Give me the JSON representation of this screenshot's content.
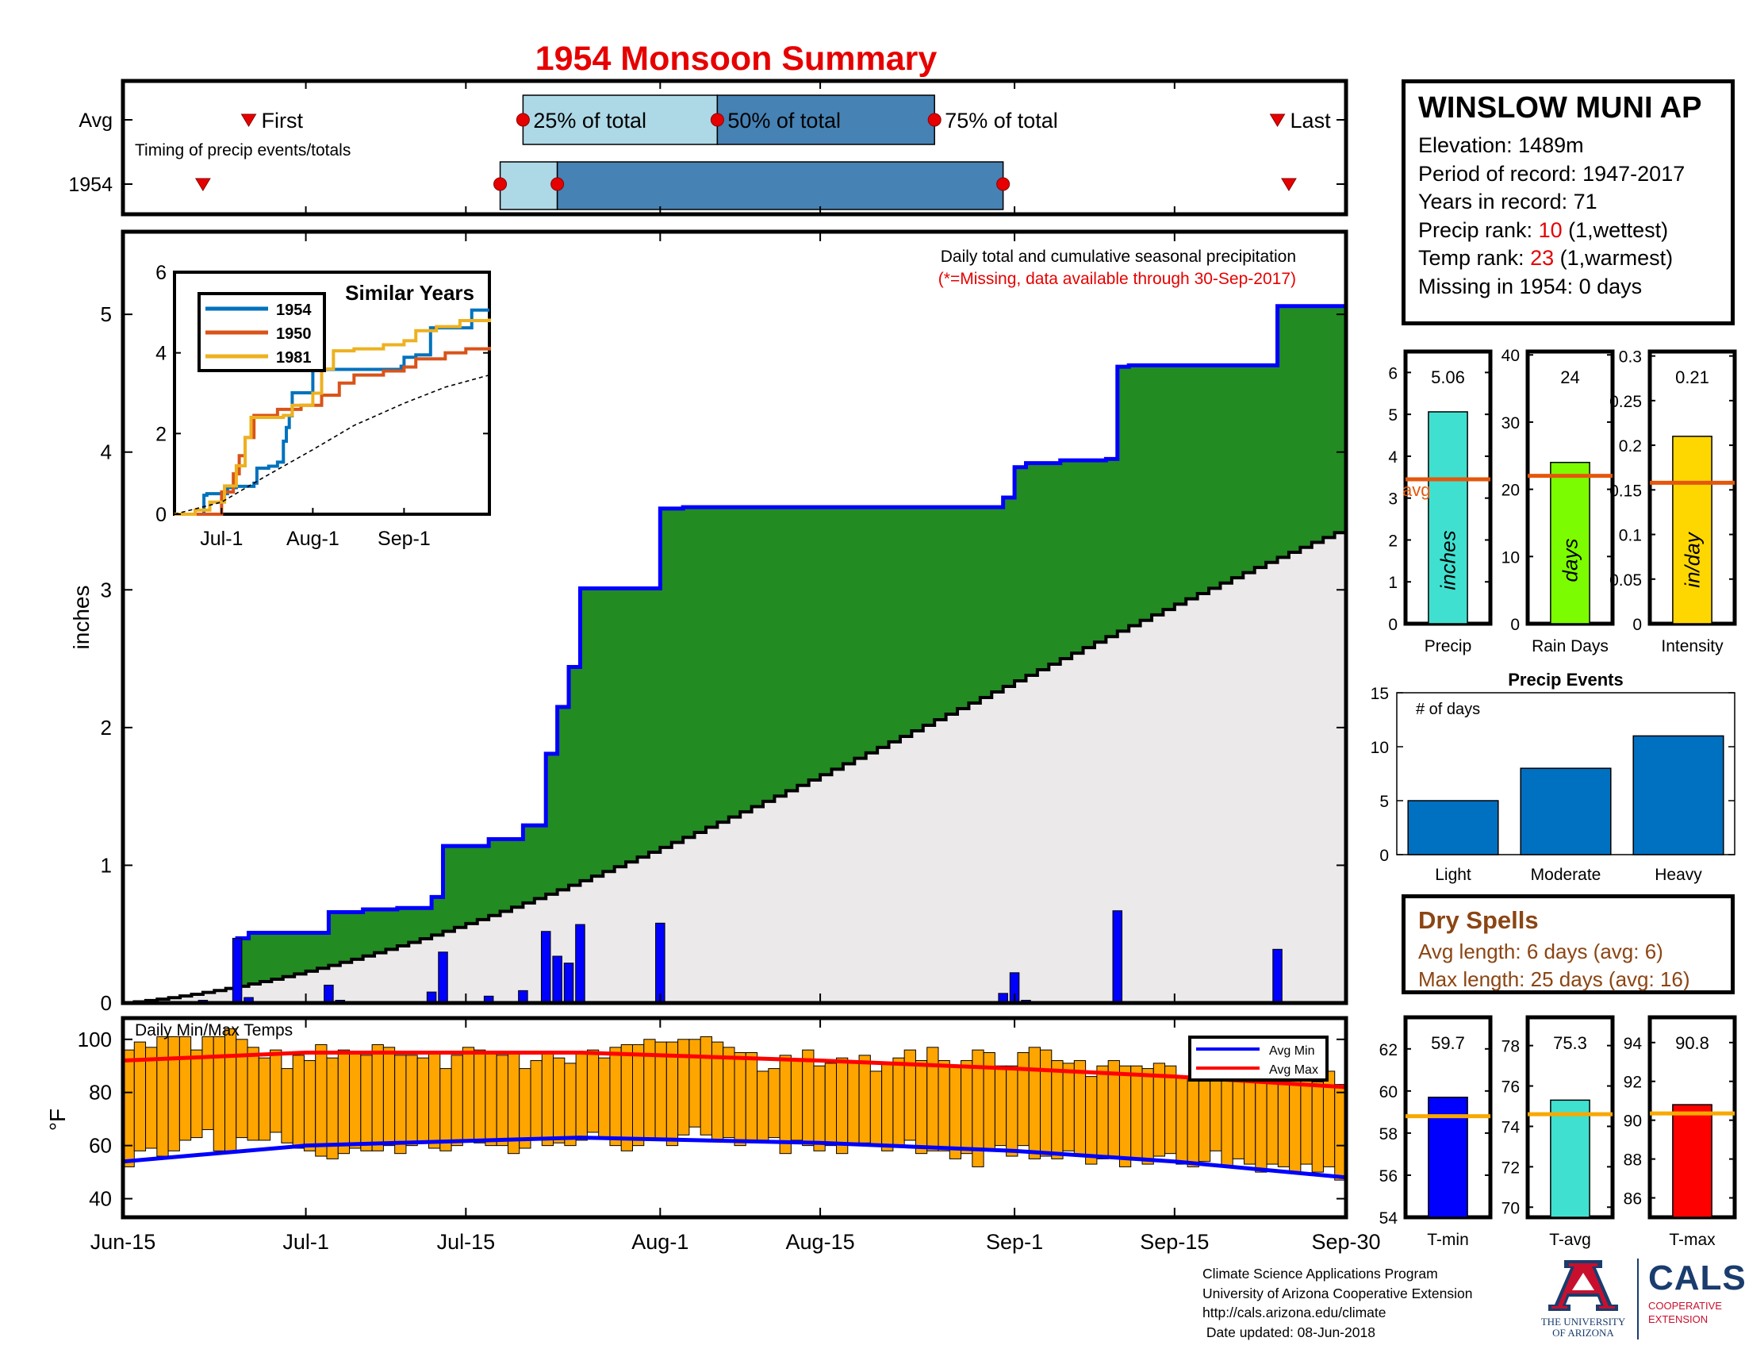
{
  "title": "1954 Monsoon Summary",
  "station": {
    "name": "WINSLOW MUNI AP",
    "lines": [
      {
        "label": "Elevation: ",
        "value": "1489m",
        "suffix": ""
      },
      {
        "label": "Period of record: ",
        "value": "1947-2017",
        "suffix": ""
      },
      {
        "label": "Years in record: ",
        "value": "71",
        "suffix": ""
      },
      {
        "label": "Precip rank: ",
        "value": "10",
        "suffix": " (1,wettest)",
        "value_color": "#e60000"
      },
      {
        "label": "Temp rank: ",
        "value": "23",
        "suffix": " (1,warmest)",
        "value_color": "#e60000"
      },
      {
        "label": "Missing in 1954: ",
        "value": "0 days",
        "suffix": ""
      }
    ]
  },
  "dry_spells": {
    "title": "Dry Spells",
    "avg_length": "Avg length: 6 days (avg: 6)",
    "max_length": "Max length: 25 days (avg: 16)"
  },
  "footer": {
    "lines": [
      "Climate Science Applications Program",
      "University of Arizona Cooperative Extension",
      "http://cals.arizona.edu/climate",
      " Date updated: 08-Jun-2018"
    ]
  },
  "logos": {
    "ua_line1": "THE UNIVERSITY",
    "ua_line2": "OF ARIZONA",
    "cals": "CALS",
    "cals_sub1": "COOPERATIVE",
    "cals_sub2": "EXTENSION"
  },
  "colors": {
    "light_blue": "#add8e6",
    "steel_blue": "#4682b4",
    "green": "#228b22",
    "cum_blue": "#0000ff",
    "avg_fill": "#ebe9e9",
    "orange": "#ffa500",
    "avg_line": "#e4570c",
    "red": "#e60000",
    "event_blue": "#0070c0",
    "temp_orange": "#f8a800"
  },
  "chart_data": [
    {
      "type": "timeline",
      "name": "timing",
      "subtitle": "Timing of precip events/totals",
      "xlim": [
        "Jun-15",
        "Sep-30"
      ],
      "rows": [
        {
          "label": "Avg",
          "first": "Jun-26",
          "q25": "Jul-20",
          "q50": "Aug-6",
          "q75": "Aug-25",
          "last": "Sep-24",
          "first_text": "First",
          "q25_text": "25% of total",
          "q50_text": "50% of total",
          "q75_text": "75% of total",
          "last_text": "Last"
        },
        {
          "label": "1954",
          "first": "Jun-22",
          "q25": "Jul-18",
          "q50": "Jul-23",
          "q75": "Aug-31",
          "last": "Sep-25"
        }
      ]
    },
    {
      "type": "area",
      "name": "precipitation",
      "title": "Daily total and cumulative seasonal precipitation",
      "note": "(*=Missing, data available through 30-Sep-2017)",
      "ylabel": "inches",
      "ylim": [
        0,
        5.6
      ],
      "yticks": [
        0,
        1,
        2,
        3,
        4,
        5
      ],
      "xlim": [
        "Jun-15",
        "Sep-30"
      ],
      "xticks": [
        "Jun-15",
        "Jul-1",
        "Jul-15",
        "Aug-1",
        "Aug-15",
        "Sep-1",
        "Sep-15",
        "Sep-30"
      ],
      "avg_cumulative_end": 3.45,
      "cumulative_1954": [
        [
          "Jun-15",
          0.0
        ],
        [
          "Jun-25",
          0.47
        ],
        [
          "Jun-26",
          0.51
        ],
        [
          "Jul-3",
          0.66
        ],
        [
          "Jul-6",
          0.68
        ],
        [
          "Jul-9",
          0.69
        ],
        [
          "Jul-12",
          0.77
        ],
        [
          "Jul-13",
          1.14
        ],
        [
          "Jul-17",
          1.19
        ],
        [
          "Jul-20",
          1.29
        ],
        [
          "Jul-22",
          1.81
        ],
        [
          "Jul-23",
          2.15
        ],
        [
          "Jul-24",
          2.44
        ],
        [
          "Jul-25",
          3.01
        ],
        [
          "Aug-1",
          3.59
        ],
        [
          "Aug-3",
          3.6
        ],
        [
          "Aug-31",
          3.67
        ],
        [
          "Sep-1",
          3.89
        ],
        [
          "Sep-2",
          3.92
        ],
        [
          "Sep-5",
          3.94
        ],
        [
          "Sep-9",
          3.95
        ],
        [
          "Sep-10",
          4.62
        ],
        [
          "Sep-11",
          4.63
        ],
        [
          "Sep-24",
          5.06
        ],
        [
          "Sep-30",
          5.06
        ]
      ],
      "daily_1954": [
        [
          "Jun-18",
          0.01
        ],
        [
          "Jun-22",
          0.02
        ],
        [
          "Jun-25",
          0.47
        ],
        [
          "Jun-26",
          0.04
        ],
        [
          "Jul-3",
          0.13
        ],
        [
          "Jul-4",
          0.02
        ],
        [
          "Jul-12",
          0.08
        ],
        [
          "Jul-13",
          0.37
        ],
        [
          "Jul-17",
          0.05
        ],
        [
          "Jul-20",
          0.09
        ],
        [
          "Jul-22",
          0.52
        ],
        [
          "Jul-23",
          0.34
        ],
        [
          "Jul-24",
          0.29
        ],
        [
          "Jul-25",
          0.57
        ],
        [
          "Aug-1",
          0.58
        ],
        [
          "Aug-3",
          0.01
        ],
        [
          "Aug-31",
          0.07
        ],
        [
          "Sep-1",
          0.22
        ],
        [
          "Sep-2",
          0.02
        ],
        [
          "Sep-5",
          0.01
        ],
        [
          "Sep-9",
          0.01
        ],
        [
          "Sep-10",
          0.67
        ],
        [
          "Sep-24",
          0.39
        ]
      ]
    },
    {
      "type": "line",
      "name": "similar-years",
      "title": "Similar Years",
      "ylim": [
        0,
        6
      ],
      "yticks": [
        0,
        2,
        4,
        6
      ],
      "xticks": [
        "Jul-1",
        "Aug-1",
        "Sep-1"
      ],
      "xlim": [
        "Jun-15",
        "Sep-30"
      ],
      "series": [
        {
          "name": "1954",
          "color": "#0072bd",
          "points": [
            [
              "Jun-15",
              0
            ],
            [
              "Jun-25",
              0.47
            ],
            [
              "Jun-26",
              0.51
            ],
            [
              "Jul-3",
              0.66
            ],
            [
              "Jul-6",
              0.69
            ],
            [
              "Jul-12",
              0.77
            ],
            [
              "Jul-13",
              1.14
            ],
            [
              "Jul-17",
              1.19
            ],
            [
              "Jul-20",
              1.29
            ],
            [
              "Jul-22",
              1.81
            ],
            [
              "Jul-23",
              2.15
            ],
            [
              "Jul-24",
              2.44
            ],
            [
              "Jul-25",
              3.01
            ],
            [
              "Aug-1",
              3.59
            ],
            [
              "Aug-31",
              3.67
            ],
            [
              "Sep-1",
              3.89
            ],
            [
              "Sep-5",
              3.95
            ],
            [
              "Sep-10",
              4.62
            ],
            [
              "Sep-24",
              5.06
            ],
            [
              "Sep-30",
              5.06
            ]
          ]
        },
        {
          "name": "1950",
          "color": "#d95319",
          "points": [
            [
              "Jun-15",
              0
            ],
            [
              "Jun-30",
              0
            ],
            [
              "Jul-1",
              0.55
            ],
            [
              "Jul-5",
              1.0
            ],
            [
              "Jul-7",
              1.45
            ],
            [
              "Jul-9",
              1.9
            ],
            [
              "Jul-12",
              2.45
            ],
            [
              "Jul-20",
              2.6
            ],
            [
              "Jul-28",
              2.7
            ],
            [
              "Aug-4",
              2.95
            ],
            [
              "Aug-10",
              3.25
            ],
            [
              "Aug-15",
              3.45
            ],
            [
              "Aug-25",
              3.55
            ],
            [
              "Sep-1",
              3.65
            ],
            [
              "Sep-5",
              3.85
            ],
            [
              "Sep-15",
              4.0
            ],
            [
              "Sep-22",
              4.1
            ],
            [
              "Sep-30",
              4.15
            ]
          ]
        },
        {
          "name": "1981",
          "color": "#edb120",
          "points": [
            [
              "Jun-15",
              0
            ],
            [
              "Jun-22",
              0.1
            ],
            [
              "Jun-27",
              0.3
            ],
            [
              "Jul-2",
              0.7
            ],
            [
              "Jul-6",
              1.2
            ],
            [
              "Jul-9",
              1.9
            ],
            [
              "Jul-11",
              2.4
            ],
            [
              "Jul-22",
              2.45
            ],
            [
              "Jul-25",
              2.7
            ],
            [
              "Aug-1",
              3.0
            ],
            [
              "Aug-4",
              3.6
            ],
            [
              "Aug-8",
              4.05
            ],
            [
              "Aug-15",
              4.1
            ],
            [
              "Aug-25",
              4.2
            ],
            [
              "Sep-1",
              4.3
            ],
            [
              "Sep-5",
              4.55
            ],
            [
              "Sep-12",
              4.65
            ],
            [
              "Sep-20",
              4.8
            ],
            [
              "Sep-30",
              4.85
            ]
          ]
        },
        {
          "name": "avg",
          "color": "#000000",
          "dashed": true,
          "points": [
            [
              "Jun-15",
              0
            ],
            [
              "Jul-1",
              0.3
            ],
            [
              "Jul-15",
              0.9
            ],
            [
              "Aug-1",
              1.6
            ],
            [
              "Aug-15",
              2.2
            ],
            [
              "Sep-1",
              2.75
            ],
            [
              "Sep-15",
              3.15
            ],
            [
              "Sep-30",
              3.45
            ]
          ]
        }
      ]
    },
    {
      "type": "bar",
      "name": "daily-temps",
      "title": "Daily Min/Max Temps",
      "ylabel": "°F",
      "ylim": [
        33,
        108
      ],
      "yticks": [
        40,
        60,
        80,
        100
      ],
      "legend": [
        "Avg Min",
        "Avg Max"
      ],
      "avg_min_points": [
        [
          "Jun-15",
          54
        ],
        [
          "Jul-1",
          60
        ],
        [
          "Jul-25",
          63
        ],
        [
          "Aug-15",
          61
        ],
        [
          "Sep-1",
          58
        ],
        [
          "Sep-15",
          54
        ],
        [
          "Sep-30",
          48
        ]
      ],
      "avg_max_points": [
        [
          "Jun-15",
          92
        ],
        [
          "Jul-1",
          95
        ],
        [
          "Jul-25",
          95
        ],
        [
          "Aug-15",
          92
        ],
        [
          "Sep-1",
          89
        ],
        [
          "Sep-15",
          86
        ],
        [
          "Sep-30",
          82
        ]
      ],
      "daily_max": [
        96,
        99,
        97,
        101,
        101,
        101,
        96,
        101,
        101,
        104,
        100,
        97,
        93,
        96,
        89,
        94,
        92,
        98,
        93,
        96,
        95,
        94,
        98,
        97,
        94,
        94,
        93,
        95,
        89,
        94,
        97,
        96,
        95,
        94,
        95,
        89,
        92,
        95,
        93,
        91,
        95,
        96,
        93,
        97,
        98,
        98,
        100,
        99,
        99,
        100,
        100,
        101,
        99,
        97,
        95,
        95,
        88,
        89,
        94,
        92,
        96,
        90,
        91,
        93,
        92,
        94,
        88,
        91,
        93,
        96,
        92,
        97,
        92,
        90,
        92,
        96,
        95,
        90,
        90,
        95,
        97,
        96,
        92,
        91,
        92,
        86,
        90,
        92,
        90,
        90,
        89,
        91,
        90,
        86,
        86,
        86,
        90,
        90,
        90,
        89,
        86,
        86,
        84,
        88,
        86,
        84,
        88,
        83
      ],
      "daily_min": [
        52,
        58,
        59,
        56,
        58,
        62,
        63,
        66,
        58,
        58,
        63,
        62,
        62,
        65,
        61,
        59,
        58,
        56,
        55,
        57,
        59,
        58,
        58,
        60,
        57,
        60,
        61,
        59,
        58,
        60,
        62,
        61,
        60,
        60,
        57,
        59,
        63,
        60,
        61,
        60,
        62,
        65,
        63,
        60,
        58,
        60,
        62,
        62,
        60,
        64,
        67,
        64,
        62,
        63,
        60,
        62,
        62,
        63,
        57,
        62,
        60,
        58,
        60,
        57,
        61,
        61,
        60,
        58,
        60,
        62,
        57,
        58,
        58,
        55,
        57,
        52,
        58,
        60,
        56,
        60,
        55,
        56,
        55,
        58,
        56,
        53,
        55,
        56,
        52,
        55,
        53,
        56,
        57,
        53,
        52,
        54,
        58,
        52,
        55,
        53,
        50,
        53,
        52,
        50,
        53,
        50,
        52,
        47
      ]
    },
    {
      "type": "bar",
      "name": "precip-summary",
      "panels": [
        {
          "label": "Precip",
          "value": 5.06,
          "value_text": "5.06",
          "avg": 3.45,
          "avg_label": "avg",
          "unit_text": "inches",
          "ylim": [
            0,
            6.5
          ],
          "yticks": [
            0,
            1,
            2,
            3,
            4,
            5,
            6
          ],
          "color": "#40e0d0"
        },
        {
          "label": "Rain Days",
          "value": 24,
          "value_text": "24",
          "avg": 22,
          "unit_text": "days",
          "ylim": [
            0,
            40.5
          ],
          "yticks": [
            0,
            10,
            20,
            30,
            40
          ],
          "color": "#7cfc00"
        },
        {
          "label": "Intensity",
          "value": 0.21,
          "value_text": "0.21",
          "avg": 0.158,
          "unit_text": "in/day",
          "ylim": [
            0,
            0.305
          ],
          "yticks": [
            0,
            0.05,
            0.1,
            0.15,
            0.2,
            0.25,
            0.3
          ],
          "ytick_labels": [
            "0",
            "0.05",
            "0.1",
            "0.15",
            "0.2",
            "0.25",
            "0.3"
          ],
          "color": "#ffd700"
        }
      ]
    },
    {
      "type": "bar",
      "name": "precip-events",
      "title": "Precip Events",
      "ylabel": "# of days",
      "categories": [
        "Light",
        "Moderate",
        "Heavy"
      ],
      "values": [
        5,
        8,
        11
      ],
      "ylim": [
        0,
        15
      ],
      "yticks": [
        0,
        5,
        10,
        15
      ]
    },
    {
      "type": "bar",
      "name": "temp-summary",
      "panels": [
        {
          "label": "T-min",
          "value": 59.7,
          "value_text": "59.7",
          "avg": 58.8,
          "ylim": [
            54,
            63.5
          ],
          "yticks": [
            54,
            56,
            58,
            60,
            62
          ],
          "color": "#0000ff"
        },
        {
          "label": "T-avg",
          "value": 75.3,
          "value_text": "75.3",
          "avg": 74.6,
          "ylim": [
            69.5,
            79.4
          ],
          "yticks": [
            70,
            72,
            74,
            76,
            78
          ],
          "color": "#40e0d0"
        },
        {
          "label": "T-max",
          "value": 90.8,
          "value_text": "90.8",
          "avg": 90.35,
          "ylim": [
            85,
            95.3
          ],
          "yticks": [
            86,
            88,
            90,
            92,
            94
          ],
          "color": "#ff0000"
        }
      ]
    }
  ]
}
